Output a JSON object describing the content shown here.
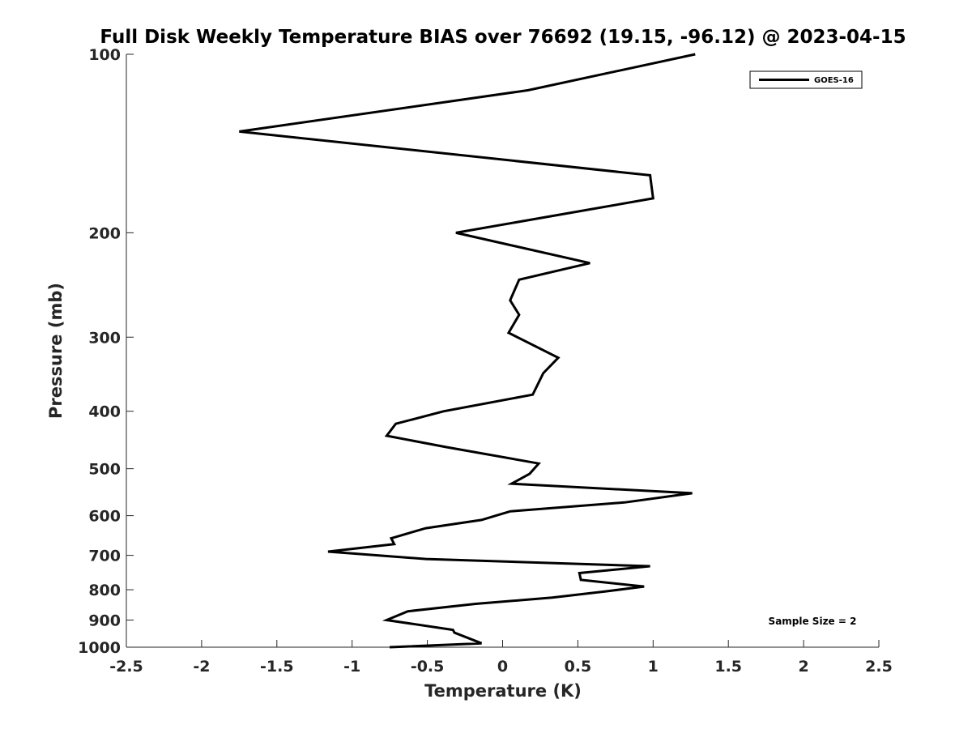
{
  "chart_data": {
    "type": "line",
    "title": "Full Disk Weekly Temperature BIAS over 76692 (19.15, -96.12) @ 2023-04-15",
    "xlabel": "Temperature (K)",
    "ylabel": "Pressure (mb)",
    "xlim": [
      -2.5,
      2.5
    ],
    "ylim": [
      1000,
      100
    ],
    "yscale": "log",
    "y_reversed": true,
    "x_ticks": [
      "-2.5",
      "-2",
      "-1.5",
      "-1",
      "-0.5",
      "0",
      "0.5",
      "1",
      "1.5",
      "2",
      "2.5"
    ],
    "y_ticks": [
      "100",
      "200",
      "300",
      "400",
      "500",
      "600",
      "700",
      "800",
      "900",
      "1000"
    ],
    "grid": false,
    "legend_position": "top-right",
    "annotation": "Sample Size = 2",
    "series": [
      {
        "name": "GOES-16",
        "color": "#000000",
        "x": [
          1.28,
          0.17,
          -1.75,
          0.98,
          1.0,
          -0.31,
          0.58,
          0.11,
          0.05,
          0.11,
          0.04,
          0.37,
          0.27,
          0.2,
          -0.39,
          -0.71,
          -0.77,
          -0.37,
          0.24,
          0.18,
          0.06,
          1.26,
          0.81,
          0.05,
          -0.14,
          -0.51,
          -0.74,
          -0.72,
          -1.16,
          -0.51,
          0.98,
          0.51,
          0.52,
          0.94,
          0.69,
          0.33,
          -0.18,
          -0.63,
          -0.77,
          -0.33,
          -0.32,
          -0.14,
          -0.75
        ],
        "y": [
          100,
          115,
          135,
          160,
          175,
          200,
          225,
          240,
          260,
          275,
          295,
          325,
          345,
          375,
          400,
          420,
          440,
          460,
          490,
          510,
          530,
          550,
          570,
          590,
          610,
          630,
          655,
          670,
          690,
          710,
          730,
          750,
          770,
          790,
          805,
          825,
          845,
          870,
          900,
          935,
          945,
          985,
          1000
        ]
      }
    ]
  }
}
